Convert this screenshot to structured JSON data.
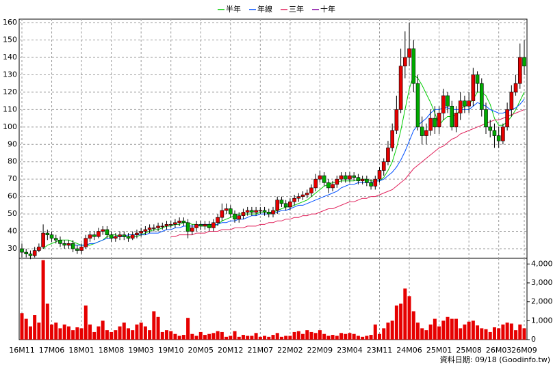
{
  "chart_data": {
    "type": "candlestick",
    "categories": [
      "16M11",
      null,
      null,
      null,
      null,
      null,
      null,
      "17M06",
      null,
      null,
      null,
      null,
      null,
      null,
      "18M01",
      null,
      null,
      null,
      null,
      null,
      null,
      "18M08",
      null,
      null,
      null,
      null,
      null,
      null,
      "19M03",
      null,
      null,
      null,
      null,
      null,
      null,
      "19M10",
      null,
      null,
      null,
      null,
      null,
      null,
      "20M05",
      null,
      null,
      null,
      null,
      null,
      null,
      "20M12",
      null,
      null,
      null,
      null,
      null,
      null,
      "21M07",
      null,
      null,
      null,
      null,
      null,
      null,
      "22M02",
      null,
      null,
      null,
      null,
      null,
      null,
      "22M09",
      null,
      null,
      null,
      null,
      null,
      null,
      "23M04",
      null,
      null,
      null,
      null,
      null,
      null,
      "23M11",
      null,
      null,
      null,
      null,
      null,
      null,
      "24M06",
      null,
      null,
      null,
      null,
      null,
      null,
      "25M01",
      null,
      null,
      null,
      null,
      null,
      null,
      "25M08",
      null,
      null,
      null,
      null,
      null,
      null,
      "26M03",
      null,
      null,
      null,
      null,
      null,
      "26M09"
    ],
    "open": [
      30,
      28,
      27,
      26,
      29,
      31,
      39,
      38,
      36,
      35,
      33,
      32,
      33,
      30,
      29,
      31,
      36,
      38,
      37,
      40,
      41,
      38,
      36,
      37,
      38,
      37,
      36,
      38,
      39,
      40,
      41,
      42,
      42,
      43,
      43,
      44,
      44,
      45,
      46,
      45,
      40,
      42,
      44,
      43,
      44,
      42,
      45,
      48,
      52,
      53,
      50,
      47,
      49,
      51,
      52,
      51,
      52,
      52,
      51,
      50,
      52,
      58,
      56,
      54,
      57,
      59,
      60,
      61,
      62,
      65,
      70,
      72,
      68,
      65,
      67,
      70,
      72,
      70,
      72,
      71,
      69,
      70,
      68,
      66,
      70,
      75,
      80,
      88,
      98,
      110,
      135,
      140,
      145,
      125,
      100,
      95,
      98,
      105,
      100,
      108,
      118,
      112,
      100,
      108,
      115,
      112,
      115,
      130,
      125,
      110,
      100,
      98,
      95,
      92,
      100,
      110,
      120,
      125,
      140
    ],
    "high": [
      33,
      30,
      29,
      31,
      33,
      44,
      41,
      40,
      38,
      37,
      35,
      35,
      35,
      32,
      33,
      38,
      40,
      40,
      42,
      43,
      43,
      40,
      39,
      40,
      40,
      39,
      40,
      41,
      42,
      43,
      44,
      44,
      45,
      45,
      46,
      46,
      47,
      48,
      48,
      47,
      44,
      46,
      46,
      46,
      46,
      47,
      50,
      56,
      56,
      55,
      52,
      51,
      53,
      54,
      54,
      54,
      54,
      54,
      53,
      54,
      60,
      60,
      58,
      59,
      61,
      62,
      63,
      64,
      67,
      73,
      75,
      74,
      70,
      69,
      72,
      74,
      74,
      74,
      74,
      73,
      72,
      72,
      70,
      72,
      77,
      82,
      92,
      102,
      118,
      145,
      155,
      160,
      150,
      130,
      106,
      102,
      110,
      112,
      112,
      122,
      120,
      115,
      112,
      120,
      118,
      120,
      134,
      132,
      128,
      114,
      104,
      102,
      100,
      102,
      114,
      124,
      130,
      148,
      150
    ],
    "low": [
      25,
      25,
      24,
      25,
      28,
      30,
      35,
      34,
      33,
      31,
      30,
      30,
      28,
      27,
      27,
      30,
      34,
      35,
      36,
      38,
      36,
      34,
      34,
      35,
      35,
      34,
      35,
      36,
      37,
      38,
      39,
      40,
      40,
      41,
      41,
      42,
      42,
      43,
      43,
      36,
      38,
      40,
      41,
      41,
      40,
      40,
      43,
      46,
      50,
      48,
      45,
      45,
      47,
      49,
      49,
      49,
      50,
      49,
      48,
      48,
      50,
      54,
      52,
      52,
      55,
      57,
      58,
      59,
      60,
      63,
      68,
      66,
      62,
      63,
      65,
      68,
      68,
      68,
      69,
      67,
      67,
      66,
      64,
      64,
      68,
      72,
      78,
      86,
      96,
      108,
      128,
      135,
      120,
      98,
      90,
      90,
      95,
      96,
      96,
      104,
      108,
      98,
      97,
      104,
      108,
      108,
      112,
      120,
      106,
      96,
      94,
      88,
      88,
      90,
      98,
      106,
      118,
      122,
      130
    ],
    "close": [
      28,
      27,
      26,
      29,
      31,
      39,
      38,
      36,
      35,
      33,
      32,
      33,
      30,
      29,
      31,
      36,
      38,
      37,
      40,
      41,
      38,
      36,
      37,
      38,
      37,
      36,
      38,
      39,
      40,
      41,
      42,
      42,
      43,
      43,
      44,
      44,
      45,
      46,
      45,
      40,
      42,
      44,
      43,
      44,
      42,
      45,
      48,
      52,
      53,
      50,
      47,
      49,
      51,
      52,
      51,
      52,
      52,
      51,
      50,
      52,
      58,
      56,
      54,
      57,
      59,
      60,
      61,
      62,
      65,
      70,
      72,
      68,
      65,
      67,
      70,
      72,
      70,
      72,
      71,
      69,
      70,
      68,
      66,
      70,
      75,
      80,
      88,
      98,
      110,
      135,
      140,
      145,
      125,
      100,
      95,
      98,
      105,
      100,
      108,
      118,
      112,
      100,
      108,
      115,
      112,
      115,
      130,
      125,
      110,
      100,
      98,
      95,
      92,
      100,
      110,
      120,
      125,
      140,
      135
    ],
    "up_color": "#e60000",
    "down_color": "#00aa00",
    "series": [
      {
        "name": "半年",
        "color": "#00cc00",
        "values": [
          null,
          null,
          null,
          null,
          null,
          30,
          32,
          33,
          34,
          35,
          35,
          35,
          34,
          33,
          32,
          32,
          32,
          33,
          34,
          35,
          37,
          38,
          38,
          37,
          37,
          37,
          37,
          37,
          38,
          39,
          40,
          41,
          41,
          42,
          43,
          43,
          44,
          44,
          45,
          45,
          44,
          44,
          43,
          43,
          43,
          43,
          44,
          46,
          47,
          48,
          49,
          50,
          50,
          50,
          50,
          50,
          51,
          51,
          51,
          51,
          52,
          53,
          54,
          54,
          55,
          56,
          57,
          58,
          60,
          62,
          64,
          66,
          67,
          68,
          68,
          69,
          69,
          69,
          69,
          70,
          70,
          70,
          69,
          69,
          69,
          71,
          75,
          80,
          88,
          98,
          110,
          122,
          130,
          128,
          124,
          119,
          114,
          108,
          101,
          104,
          106,
          106,
          107,
          110,
          112,
          113,
          116,
          120,
          120,
          118,
          113,
          105,
          101,
          101,
          103,
          106,
          110,
          115,
          120
        ]
      },
      {
        "name": "年線",
        "color": "#0050ff",
        "values": [
          null,
          null,
          null,
          null,
          null,
          null,
          null,
          null,
          null,
          null,
          null,
          32,
          32,
          32,
          32,
          32,
          33,
          33,
          34,
          35,
          36,
          36,
          37,
          37,
          37,
          38,
          38,
          38,
          38,
          38,
          39,
          39,
          39,
          40,
          41,
          41,
          42,
          42,
          43,
          43,
          43,
          43,
          44,
          44,
          44,
          44,
          44,
          45,
          45,
          46,
          46,
          47,
          47,
          48,
          49,
          49,
          50,
          50,
          50,
          51,
          51,
          52,
          52,
          53,
          54,
          55,
          55,
          56,
          57,
          58,
          59,
          60,
          61,
          62,
          63,
          65,
          66,
          67,
          67,
          68,
          68,
          68,
          68,
          69,
          69,
          70,
          72,
          74,
          77,
          81,
          86,
          92,
          98,
          101,
          103,
          105,
          108,
          110,
          110,
          111,
          111,
          110,
          110,
          110,
          110,
          110,
          112,
          114,
          113,
          112,
          110,
          109,
          108,
          108,
          109,
          110,
          111,
          113,
          116
        ]
      },
      {
        "name": "三年",
        "color": "#e0205a",
        "values": [
          null,
          null,
          null,
          null,
          null,
          null,
          null,
          null,
          null,
          null,
          null,
          null,
          null,
          null,
          null,
          null,
          null,
          null,
          null,
          null,
          null,
          null,
          null,
          null,
          null,
          null,
          null,
          null,
          null,
          null,
          null,
          null,
          null,
          null,
          null,
          37,
          37,
          38,
          38,
          38,
          38,
          39,
          39,
          39,
          40,
          40,
          40,
          41,
          41,
          41,
          42,
          42,
          42,
          43,
          43,
          43,
          44,
          44,
          45,
          45,
          46,
          46,
          47,
          47,
          48,
          48,
          49,
          49,
          50,
          50,
          51,
          52,
          53,
          53,
          54,
          55,
          56,
          57,
          57,
          58,
          59,
          59,
          60,
          60,
          61,
          62,
          63,
          64,
          66,
          68,
          70,
          73,
          76,
          78,
          80,
          82,
          84,
          86,
          88,
          89,
          91,
          93,
          94,
          96,
          97,
          98,
          99,
          100,
          101,
          102,
          103,
          104,
          104,
          105,
          106,
          107,
          108,
          109,
          110
        ]
      },
      {
        "name": "十年",
        "color": "#8000a0",
        "values": [
          null,
          null,
          null,
          null,
          null,
          null,
          null,
          null,
          null,
          null,
          null,
          null,
          null,
          null,
          null,
          null,
          null,
          null,
          null,
          null,
          null,
          null,
          null,
          null,
          null,
          null,
          null,
          null,
          null,
          null,
          null,
          null,
          null,
          null,
          null,
          null,
          null,
          null,
          null,
          null,
          null,
          null,
          null,
          null,
          null,
          null,
          null,
          null,
          null,
          null,
          null,
          null,
          null,
          null,
          null,
          null,
          null,
          null,
          null,
          null,
          null,
          null,
          null,
          null,
          null,
          null,
          null,
          null,
          null,
          null,
          null,
          null,
          null,
          null,
          null,
          null,
          null,
          null,
          null,
          null,
          null,
          null,
          null,
          null,
          null,
          null,
          null,
          null,
          null,
          null,
          null,
          null,
          null,
          null,
          null,
          null,
          null,
          null,
          null,
          null,
          null,
          null,
          null,
          null,
          null,
          null,
          null,
          null,
          null,
          null,
          null,
          null,
          null,
          null,
          null,
          null,
          null,
          null,
          null
        ]
      }
    ],
    "ylim": [
      24.5,
      162
    ],
    "yticks": [
      30,
      40,
      50,
      60,
      70,
      80,
      90,
      100,
      110,
      120,
      130,
      140,
      150,
      160
    ],
    "grid": true,
    "volume": {
      "color": "#e60000",
      "values": [
        1400,
        1100,
        700,
        1300,
        900,
        4200,
        1900,
        800,
        900,
        600,
        800,
        700,
        500,
        650,
        600,
        1800,
        800,
        400,
        700,
        1000,
        500,
        400,
        500,
        700,
        900,
        600,
        500,
        800,
        900,
        700,
        500,
        1500,
        1200,
        400,
        500,
        450,
        300,
        200,
        250,
        1150,
        300,
        200,
        400,
        250,
        300,
        350,
        450,
        400,
        150,
        200,
        450,
        150,
        250,
        200,
        200,
        350,
        150,
        200,
        150,
        250,
        350,
        150,
        200,
        200,
        400,
        450,
        300,
        500,
        400,
        350,
        500,
        300,
        200,
        250,
        200,
        350,
        300,
        350,
        300,
        200,
        150,
        200,
        250,
        800,
        300,
        600,
        900,
        1000,
        1800,
        1900,
        2700,
        2300,
        1500,
        900,
        600,
        500,
        800,
        1100,
        700,
        1000,
        1200,
        1100,
        1100,
        600,
        800,
        950,
        1000,
        750,
        600,
        550,
        400,
        650,
        600,
        800,
        900,
        850,
        500,
        800,
        600
      ],
      "ylim": [
        0,
        4300
      ],
      "yticks": [
        0,
        {
          "value": 1000,
          "label": "1,000"
        },
        {
          "value": 2000,
          "label": "2,000"
        },
        {
          "value": 3000,
          "label": "3,000"
        },
        {
          "value": 4000,
          "label": "4,000"
        }
      ]
    },
    "footnote": "資料日期: 09/18 (Goodinfo.tw)"
  }
}
